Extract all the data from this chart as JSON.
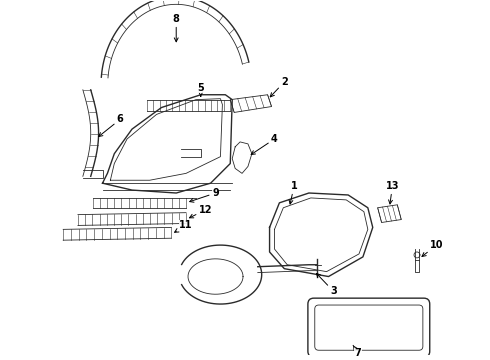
{
  "background": "#ffffff",
  "line_color": "#2a2a2a",
  "label_color": "#000000",
  "fig_w": 4.9,
  "fig_h": 3.6,
  "dpi": 100
}
